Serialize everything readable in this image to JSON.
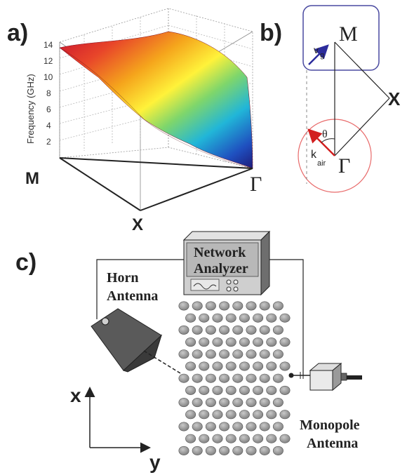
{
  "panel_a": {
    "label": "a)",
    "y_axis_title": "Frequency (GHz)",
    "y_ticks": [
      "2",
      "4",
      "6",
      "8",
      "10",
      "12",
      "14"
    ],
    "corner_labels": {
      "m": "M",
      "x": "X",
      "gamma": "Γ"
    },
    "surface_colors": [
      "#c8102e",
      "#e8452a",
      "#f5a51c",
      "#fff23a",
      "#7fd66b",
      "#21b6d8",
      "#1f4fbf",
      "#1d1b7a"
    ]
  },
  "panel_b": {
    "label": "b)",
    "vertex_m": "M",
    "vertex_x": "X",
    "vertex_gamma": "Γ",
    "vg_main": "v",
    "vg_sub": "g",
    "kair_main": "k",
    "kair_sub": "air",
    "theta": "θ",
    "colors": {
      "box": "#4a4aa0",
      "circle": "#e86a6a",
      "vg_arrow": "#2c2c9c",
      "k_arrow": "#d21f1f"
    }
  },
  "panel_c": {
    "label": "c)",
    "network_line1": "Network",
    "network_line2": "Analyzer",
    "horn_line1": "Horn",
    "horn_line2": "Antenna",
    "monopole_line1": "Monopole",
    "monopole_line2": "Antenna",
    "axis_x": "x",
    "axis_y": "y"
  }
}
